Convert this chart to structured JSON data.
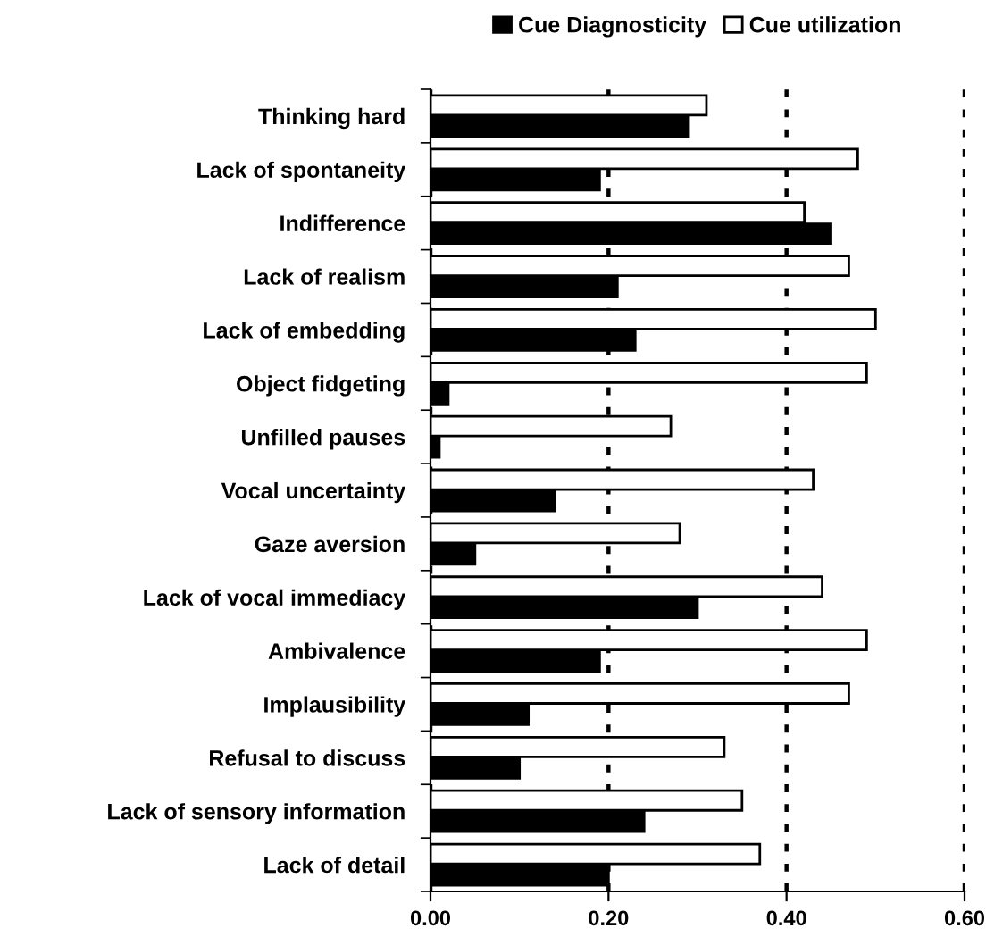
{
  "chart_data": {
    "type": "bar",
    "orientation": "horizontal",
    "categories": [
      "Thinking hard",
      "Lack of spontaneity",
      "Indifference",
      "Lack of realism",
      "Lack of embedding",
      "Object fidgeting",
      "Unfilled pauses",
      "Vocal uncertainty",
      "Gaze aversion",
      "Lack of vocal immediacy",
      "Ambivalence",
      "Implausibility",
      "Refusal to discuss",
      "Lack of sensory information",
      "Lack of detail"
    ],
    "series": [
      {
        "name": "Cue Diagnosticity",
        "color": "#000000",
        "values": [
          0.29,
          0.19,
          0.45,
          0.21,
          0.23,
          0.02,
          0.01,
          0.14,
          0.05,
          0.3,
          0.19,
          0.11,
          0.1,
          0.24,
          0.2
        ]
      },
      {
        "name": "Cue utilization",
        "color": "#ffffff",
        "values": [
          0.31,
          0.48,
          0.42,
          0.47,
          0.5,
          0.49,
          0.27,
          0.43,
          0.28,
          0.44,
          0.49,
          0.47,
          0.33,
          0.35,
          0.37
        ]
      }
    ],
    "xlim": [
      0,
      0.6
    ],
    "xticks": [
      {
        "value": 0,
        "label": "0.00"
      },
      {
        "value": 0.2,
        "label": "0.20"
      },
      {
        "value": 0.4,
        "label": "0.40"
      },
      {
        "value": 0.6,
        "label": "0.60"
      }
    ],
    "grid": "x",
    "legend": "top"
  }
}
